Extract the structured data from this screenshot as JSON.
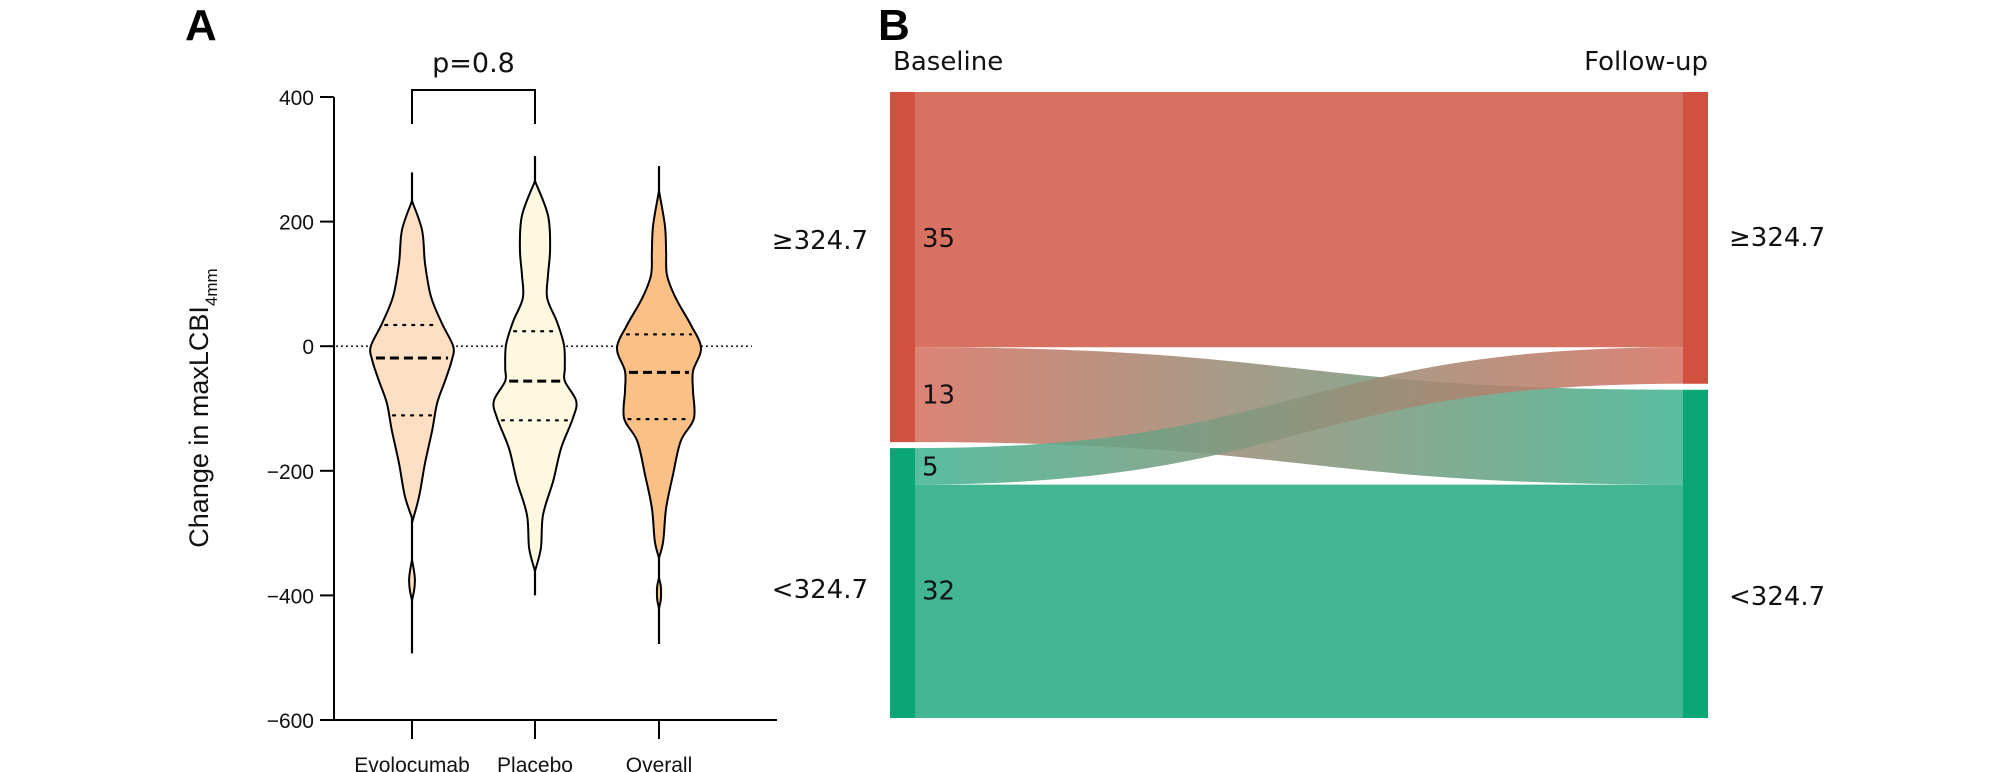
{
  "panels": {
    "a_label": "A",
    "b_label": "B"
  },
  "chart_data": [
    {
      "type": "violin",
      "panel": "A",
      "title": "",
      "xlabel": "",
      "ylabel": "Change in maxLCBI",
      "ylabel_subscript": "4mm",
      "ylim": [
        -600,
        400
      ],
      "yticks": [
        400,
        200,
        0,
        -200,
        -400,
        -600
      ],
      "ytick_labels": [
        "400",
        "200",
        "0",
        "−200",
        "−400",
        "−600"
      ],
      "reference_line": 0,
      "grid": false,
      "categories": [
        "Evolocumab",
        "Placebo",
        "Overall"
      ],
      "comparison": {
        "between": [
          "Evolocumab",
          "Placebo"
        ],
        "label": "p=0.8"
      },
      "series": [
        {
          "name": "Evolocumab",
          "color": "#FDDFC4",
          "min": -493,
          "max": 279,
          "q1": -111,
          "median": -19,
          "q3": 34,
          "density": [
            [
              233,
              0
            ],
            [
              186,
              0.24
            ],
            [
              133,
              0.31
            ],
            [
              80,
              0.45
            ],
            [
              37,
              0.71
            ],
            [
              0,
              0.98
            ],
            [
              -22,
              0.95
            ],
            [
              -55,
              0.79
            ],
            [
              -91,
              0.6
            ],
            [
              -135,
              0.48
            ],
            [
              -188,
              0.31
            ],
            [
              -241,
              0.17
            ],
            [
              -279,
              0.02
            ]
          ],
          "density_tail": [
            [
              -343,
              0
            ],
            [
              -362,
              0.05
            ],
            [
              -376,
              0.07
            ],
            [
              -392,
              0.05
            ],
            [
              -408,
              0
            ]
          ]
        },
        {
          "name": "Placebo",
          "color": "#FEF8E1",
          "min": -400,
          "max": 305,
          "q1": -119,
          "median": -56,
          "q3": 24,
          "density": [
            [
              265,
              0
            ],
            [
              210,
              0.31
            ],
            [
              157,
              0.36
            ],
            [
              114,
              0.31
            ],
            [
              77,
              0.29
            ],
            [
              40,
              0.52
            ],
            [
              2,
              0.69
            ],
            [
              -35,
              0.71
            ],
            [
              -56,
              0.71
            ],
            [
              -88,
              0.98
            ],
            [
              -116,
              0.9
            ],
            [
              -164,
              0.62
            ],
            [
              -217,
              0.43
            ],
            [
              -271,
              0.19
            ],
            [
              -324,
              0.14
            ],
            [
              -361,
              0
            ]
          ],
          "density_tail": []
        },
        {
          "name": "Overall",
          "color": "#FBC086",
          "min": -478,
          "max": 289,
          "q1": -117,
          "median": -42,
          "q3": 19,
          "density": [
            [
              249,
              0
            ],
            [
              194,
              0.14
            ],
            [
              152,
              0.17
            ],
            [
              114,
              0.19
            ],
            [
              77,
              0.4
            ],
            [
              34,
              0.76
            ],
            [
              -3,
              1.0
            ],
            [
              -40,
              0.81
            ],
            [
              -72,
              0.81
            ],
            [
              -116,
              0.83
            ],
            [
              -152,
              0.52
            ],
            [
              -207,
              0.33
            ],
            [
              -260,
              0.17
            ],
            [
              -313,
              0.1
            ],
            [
              -340,
              0
            ]
          ],
          "density_tail": [
            [
              -372,
              0
            ],
            [
              -384,
              0.04
            ],
            [
              -396,
              0.05
            ],
            [
              -408,
              0.04
            ],
            [
              -421,
              0
            ]
          ]
        }
      ]
    },
    {
      "type": "sankey",
      "panel": "B",
      "stages": [
        "Baseline",
        "Follow-up"
      ],
      "nodes": [
        {
          "id": "high",
          "label": "≥324.7",
          "node_color": "#D05140",
          "link_color": "#D77263"
        },
        {
          "id": "low",
          "label": "<324.7",
          "node_color": "#0AA676",
          "link_color": "#42B593"
        }
      ],
      "flows": [
        {
          "from": "high",
          "to": "high",
          "value": 35,
          "label": "35"
        },
        {
          "from": "high",
          "to": "low",
          "value": 13,
          "label": "13"
        },
        {
          "from": "low",
          "to": "high",
          "value": 5,
          "label": "5"
        },
        {
          "from": "low",
          "to": "low",
          "value": 32,
          "label": "32"
        }
      ]
    }
  ]
}
